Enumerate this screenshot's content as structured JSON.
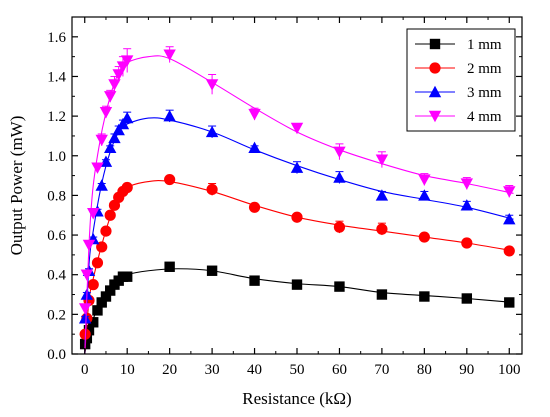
{
  "chart_data": {
    "type": "scatter",
    "xlabel": "Resistance (kΩ)",
    "ylabel": "Output Power (mW)",
    "xlim": [
      -3,
      103
    ],
    "ylim": [
      0,
      1.7
    ],
    "xticks": [
      0,
      10,
      20,
      30,
      40,
      50,
      60,
      70,
      80,
      90,
      100
    ],
    "yticks": [
      0.0,
      0.2,
      0.4,
      0.6,
      0.8,
      1.0,
      1.2,
      1.4,
      1.6
    ],
    "ytick_labels": [
      "0.0",
      "0.2",
      "0.4",
      "0.6",
      "0.8",
      "1.0",
      "1.2",
      "1.4",
      "1.6"
    ],
    "grid": false,
    "legend_position": "top-right",
    "series": [
      {
        "name": "1 mm",
        "color": "#000000",
        "marker": "square",
        "x": [
          0.1,
          0.5,
          1,
          2,
          3,
          4,
          5,
          6,
          7,
          8,
          9,
          10,
          20,
          30,
          40,
          50,
          60,
          70,
          80,
          90,
          100
        ],
        "y": [
          0.05,
          0.08,
          0.12,
          0.16,
          0.22,
          0.26,
          0.29,
          0.32,
          0.35,
          0.37,
          0.39,
          0.39,
          0.44,
          0.42,
          0.37,
          0.35,
          0.34,
          0.3,
          0.29,
          0.28,
          0.26
        ],
        "error": [
          0.01,
          0.01,
          0.01,
          0.01,
          0.01,
          0.01,
          0.01,
          0.01,
          0.01,
          0.01,
          0.01,
          0.01,
          0.01,
          0.01,
          0.01,
          0.01,
          0.01,
          0.01,
          0.01,
          0.01,
          0.01
        ],
        "fit": [
          [
            0,
            0.0
          ],
          [
            1,
            0.12
          ],
          [
            2,
            0.18
          ],
          [
            4,
            0.26
          ],
          [
            6,
            0.32
          ],
          [
            8,
            0.37
          ],
          [
            10,
            0.4
          ],
          [
            15,
            0.42
          ],
          [
            22,
            0.43
          ],
          [
            30,
            0.42
          ],
          [
            40,
            0.38
          ],
          [
            50,
            0.355
          ],
          [
            60,
            0.34
          ],
          [
            70,
            0.31
          ],
          [
            80,
            0.295
          ],
          [
            90,
            0.28
          ],
          [
            101,
            0.26
          ]
        ]
      },
      {
        "name": "2 mm",
        "color": "#ff0000",
        "marker": "circle",
        "x": [
          0.1,
          0.5,
          1,
          2,
          3,
          4,
          5,
          6,
          7,
          8,
          9,
          10,
          20,
          30,
          40,
          50,
          60,
          70,
          80,
          90,
          100
        ],
        "y": [
          0.1,
          0.18,
          0.27,
          0.35,
          0.46,
          0.54,
          0.62,
          0.7,
          0.75,
          0.79,
          0.82,
          0.84,
          0.88,
          0.83,
          0.74,
          0.69,
          0.64,
          0.63,
          0.59,
          0.56,
          0.52
        ],
        "error": [
          0.01,
          0.01,
          0.01,
          0.01,
          0.01,
          0.01,
          0.01,
          0.01,
          0.01,
          0.01,
          0.01,
          0.01,
          0.01,
          0.03,
          0.01,
          0.01,
          0.03,
          0.03,
          0.01,
          0.01,
          0.01
        ],
        "fit": [
          [
            0,
            0.0
          ],
          [
            1,
            0.27
          ],
          [
            2,
            0.38
          ],
          [
            4,
            0.55
          ],
          [
            6,
            0.69
          ],
          [
            8,
            0.78
          ],
          [
            10,
            0.84
          ],
          [
            15,
            0.87
          ],
          [
            20,
            0.87
          ],
          [
            30,
            0.82
          ],
          [
            40,
            0.75
          ],
          [
            50,
            0.69
          ],
          [
            60,
            0.65
          ],
          [
            70,
            0.62
          ],
          [
            80,
            0.59
          ],
          [
            90,
            0.56
          ],
          [
            101,
            0.52
          ]
        ]
      },
      {
        "name": "3 mm",
        "color": "#0000ff",
        "marker": "triangle-up",
        "x": [
          0.1,
          0.5,
          1,
          2,
          3,
          4,
          5,
          6,
          7,
          8,
          9,
          10,
          20,
          30,
          40,
          50,
          60,
          70,
          80,
          90,
          100
        ],
        "y": [
          0.18,
          0.3,
          0.42,
          0.58,
          0.72,
          0.85,
          0.97,
          1.04,
          1.09,
          1.13,
          1.16,
          1.19,
          1.2,
          1.12,
          1.04,
          0.94,
          0.89,
          0.8,
          0.8,
          0.75,
          0.68
        ],
        "error": [
          0.01,
          0.01,
          0.01,
          0.01,
          0.01,
          0.01,
          0.01,
          0.01,
          0.02,
          0.02,
          0.02,
          0.03,
          0.03,
          0.03,
          0.01,
          0.03,
          0.03,
          0.02,
          0.02,
          0.02,
          0.02
        ],
        "fit": [
          [
            0,
            0.0
          ],
          [
            1,
            0.45
          ],
          [
            2,
            0.62
          ],
          [
            4,
            0.86
          ],
          [
            6,
            1.02
          ],
          [
            8,
            1.12
          ],
          [
            10,
            1.16
          ],
          [
            15,
            1.19
          ],
          [
            20,
            1.18
          ],
          [
            30,
            1.12
          ],
          [
            40,
            1.03
          ],
          [
            50,
            0.95
          ],
          [
            60,
            0.88
          ],
          [
            70,
            0.82
          ],
          [
            80,
            0.78
          ],
          [
            90,
            0.74
          ],
          [
            101,
            0.68
          ]
        ]
      },
      {
        "name": "4 mm",
        "color": "#ff00ff",
        "marker": "triangle-down",
        "x": [
          0.1,
          0.5,
          1,
          2,
          3,
          4,
          5,
          6,
          7,
          8,
          9,
          10,
          20,
          30,
          40,
          50,
          60,
          70,
          80,
          90,
          100
        ],
        "y": [
          0.23,
          0.4,
          0.55,
          0.71,
          0.94,
          1.08,
          1.22,
          1.3,
          1.36,
          1.41,
          1.45,
          1.48,
          1.51,
          1.36,
          1.21,
          1.14,
          1.02,
          0.98,
          0.88,
          0.86,
          0.82
        ],
        "error": [
          0.01,
          0.01,
          0.01,
          0.01,
          0.02,
          0.03,
          0.03,
          0.03,
          0.04,
          0.04,
          0.05,
          0.06,
          0.04,
          0.05,
          0.03,
          0.02,
          0.04,
          0.04,
          0.03,
          0.03,
          0.03
        ],
        "fit": [
          [
            0,
            0.0
          ],
          [
            1,
            0.55
          ],
          [
            2,
            0.85
          ],
          [
            4,
            1.12
          ],
          [
            6,
            1.3
          ],
          [
            8,
            1.42
          ],
          [
            10,
            1.47
          ],
          [
            15,
            1.5
          ],
          [
            20,
            1.49
          ],
          [
            30,
            1.37
          ],
          [
            40,
            1.24
          ],
          [
            50,
            1.12
          ],
          [
            60,
            1.03
          ],
          [
            70,
            0.96
          ],
          [
            80,
            0.9
          ],
          [
            90,
            0.86
          ],
          [
            101,
            0.81
          ]
        ]
      }
    ]
  }
}
